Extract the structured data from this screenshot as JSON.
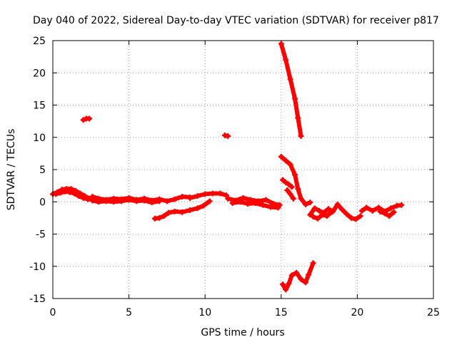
{
  "chart_data": {
    "type": "scatter",
    "title": "Day 040 of 2022, Sidereal Day-to-day VTEC variation (SDTVAR) for receiver p817",
    "xlabel": "GPS time / hours",
    "ylabel": "SDTVAR / TECUs",
    "xlim": [
      0,
      25
    ],
    "ylim": [
      -15,
      25
    ],
    "xticks": [
      0,
      5,
      10,
      15,
      20,
      25
    ],
    "yticks": [
      -15,
      -10,
      -5,
      0,
      5,
      10,
      15,
      20,
      25
    ],
    "grid": true,
    "marker": "plus",
    "series": [
      {
        "name": "SDTVAR",
        "color": "#ff0000",
        "segments": [
          [
            [
              0.0,
              1.2
            ],
            [
              0.3,
              1.5
            ],
            [
              0.6,
              1.9
            ],
            [
              0.9,
              2.0
            ],
            [
              1.2,
              2.0
            ],
            [
              1.5,
              1.7
            ],
            [
              1.8,
              1.3
            ],
            [
              2.1,
              0.9
            ],
            [
              2.4,
              0.5
            ]
          ],
          [
            [
              0.2,
              1.2
            ],
            [
              0.5,
              1.4
            ],
            [
              0.8,
              1.6
            ],
            [
              1.1,
              1.5
            ],
            [
              1.4,
              1.3
            ],
            [
              1.7,
              0.9
            ],
            [
              2.0,
              0.6
            ],
            [
              2.3,
              0.4
            ]
          ],
          [
            [
              2.0,
              12.7
            ],
            [
              2.2,
              12.9
            ],
            [
              2.4,
              12.9
            ]
          ],
          [
            [
              2.6,
              0.8
            ],
            [
              3.0,
              0.5
            ],
            [
              3.5,
              0.3
            ],
            [
              4.0,
              0.5
            ],
            [
              4.5,
              0.4
            ],
            [
              5.0,
              0.6
            ],
            [
              5.5,
              0.3
            ],
            [
              6.0,
              0.5
            ],
            [
              6.5,
              0.2
            ],
            [
              7.0,
              0.4
            ],
            [
              7.5,
              0.1
            ],
            [
              8.0,
              0.4
            ],
            [
              8.5,
              0.8
            ],
            [
              9.0,
              0.7
            ]
          ],
          [
            [
              2.6,
              0.2
            ],
            [
              3.0,
              0.0
            ],
            [
              3.5,
              0.1
            ],
            [
              4.0,
              0.0
            ],
            [
              4.5,
              0.1
            ],
            [
              5.0,
              0.3
            ],
            [
              5.5,
              0.1
            ],
            [
              6.0,
              0.2
            ],
            [
              6.5,
              -0.1
            ],
            [
              7.0,
              0.1
            ]
          ],
          [
            [
              6.7,
              -2.6
            ],
            [
              7.0,
              -2.5
            ],
            [
              7.3,
              -2.2
            ],
            [
              7.6,
              -1.7
            ],
            [
              8.0,
              -1.5
            ],
            [
              8.5,
              -1.6
            ],
            [
              9.0,
              -1.3
            ],
            [
              9.5,
              -1.0
            ],
            [
              9.9,
              -0.6
            ],
            [
              10.3,
              0.1
            ]
          ],
          [
            [
              9.0,
              0.6
            ],
            [
              9.5,
              0.9
            ],
            [
              10.0,
              1.2
            ],
            [
              10.5,
              1.3
            ],
            [
              11.0,
              1.3
            ],
            [
              11.4,
              1.0
            ]
          ],
          [
            [
              11.3,
              10.3
            ],
            [
              11.5,
              10.2
            ]
          ],
          [
            [
              11.5,
              0.5
            ],
            [
              12.0,
              0.2
            ],
            [
              12.5,
              0.6
            ],
            [
              13.0,
              0.3
            ],
            [
              13.5,
              0.1
            ],
            [
              14.0,
              0.3
            ],
            [
              14.5,
              -0.3
            ],
            [
              14.9,
              -0.5
            ]
          ],
          [
            [
              11.8,
              -0.2
            ],
            [
              12.3,
              0.0
            ],
            [
              12.8,
              -0.3
            ],
            [
              13.3,
              -0.2
            ],
            [
              13.8,
              -0.5
            ],
            [
              14.3,
              -0.8
            ],
            [
              14.8,
              -0.9
            ]
          ],
          [
            [
              15.0,
              24.5
            ],
            [
              15.3,
              22.0
            ],
            [
              15.6,
              19.0
            ],
            [
              15.9,
              16.0
            ],
            [
              16.1,
              13.0
            ],
            [
              16.3,
              10.2
            ]
          ],
          [
            [
              15.0,
              7.0
            ],
            [
              15.3,
              6.4
            ],
            [
              15.6,
              5.8
            ],
            [
              15.9,
              4.2
            ],
            [
              16.1,
              2.0
            ],
            [
              16.3,
              0.5
            ],
            [
              16.6,
              -0.4
            ],
            [
              16.9,
              -0.1
            ]
          ],
          [
            [
              15.1,
              3.4
            ],
            [
              15.3,
              3.0
            ],
            [
              15.5,
              2.7
            ],
            [
              15.7,
              2.3
            ]
          ],
          [
            [
              15.4,
              1.8
            ],
            [
              15.6,
              1.2
            ],
            [
              15.8,
              0.5
            ]
          ],
          [
            [
              15.1,
              -12.8
            ],
            [
              15.3,
              -13.6
            ],
            [
              15.5,
              -12.7
            ],
            [
              15.7,
              -11.4
            ],
            [
              16.0,
              -11.0
            ],
            [
              16.3,
              -12.0
            ],
            [
              16.6,
              -12.5
            ],
            [
              16.8,
              -11.3
            ],
            [
              17.1,
              -9.5
            ]
          ],
          [
            [
              16.9,
              -2.0
            ],
            [
              17.2,
              -1.0
            ],
            [
              17.5,
              -1.4
            ],
            [
              17.8,
              -1.7
            ],
            [
              18.1,
              -1.1
            ],
            [
              18.4,
              -1.5
            ],
            [
              18.7,
              -0.4
            ],
            [
              19.0,
              -1.2
            ],
            [
              19.3,
              -1.9
            ],
            [
              19.6,
              -2.5
            ],
            [
              19.9,
              -2.7
            ],
            [
              20.2,
              -2.2
            ]
          ],
          [
            [
              17.1,
              -2.3
            ],
            [
              17.4,
              -2.6
            ],
            [
              17.7,
              -2.0
            ],
            [
              18.0,
              -2.2
            ],
            [
              18.3,
              -1.6
            ]
          ],
          [
            [
              20.3,
              -1.4
            ],
            [
              20.6,
              -0.9
            ],
            [
              21.0,
              -1.4
            ],
            [
              21.4,
              -0.9
            ],
            [
              21.8,
              -1.5
            ],
            [
              22.2,
              -1.0
            ],
            [
              22.6,
              -0.6
            ],
            [
              22.9,
              -0.5
            ]
          ],
          [
            [
              21.5,
              -1.5
            ],
            [
              21.8,
              -1.8
            ],
            [
              22.1,
              -2.2
            ],
            [
              22.4,
              -1.6
            ]
          ]
        ]
      }
    ]
  }
}
